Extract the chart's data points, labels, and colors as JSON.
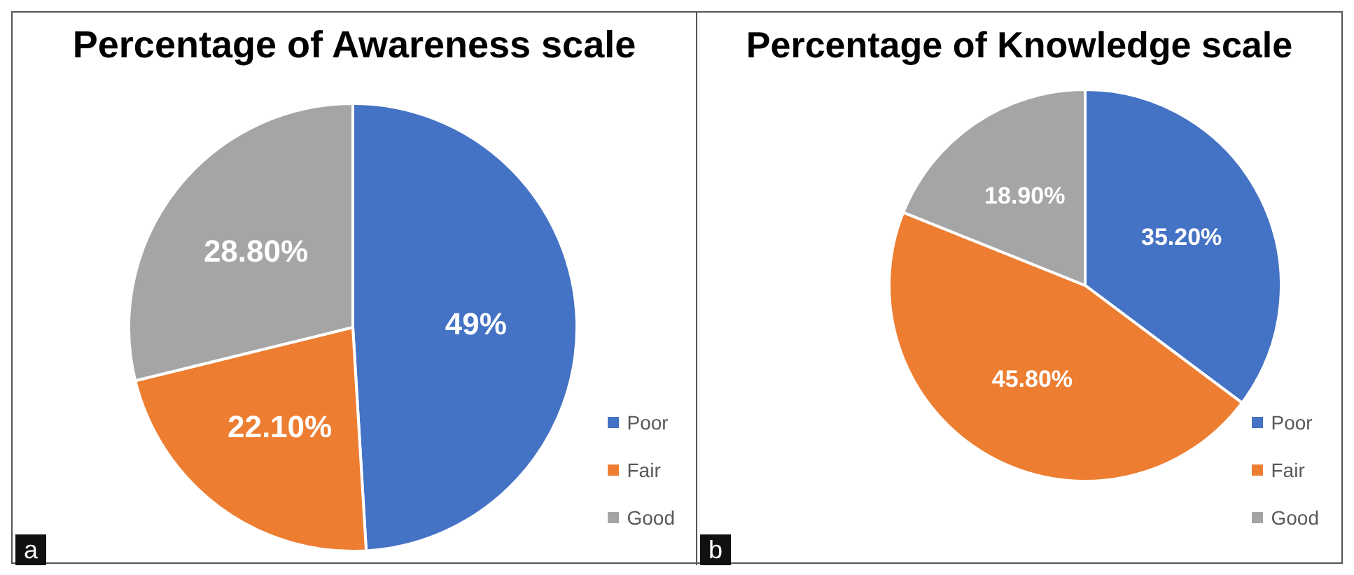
{
  "chart_data": [
    {
      "type": "pie",
      "title": "Percentage of Awareness scale",
      "categories": [
        "Poor",
        "Fair",
        "Good"
      ],
      "values": [
        49,
        22.1,
        28.8
      ],
      "colors": [
        "#4472c4",
        "#ed7d31",
        "#a5a5a5"
      ],
      "value_labels": [
        "49%",
        "22.10%",
        "28.80%"
      ],
      "legend": "bottom right",
      "annotations": [
        "a"
      ]
    },
    {
      "type": "pie",
      "title": "Percentage of Knowledge scale",
      "categories": [
        "Poor",
        "Fair",
        "Good"
      ],
      "values": [
        35.2,
        45.8,
        18.9
      ],
      "colors": [
        "#4472c4",
        "#ed7d31",
        "#a5a5a5"
      ],
      "value_labels": [
        "35.20%",
        "45.80%",
        "18.90%"
      ],
      "legend": "bottom right",
      "annotations": [
        "b"
      ]
    }
  ]
}
